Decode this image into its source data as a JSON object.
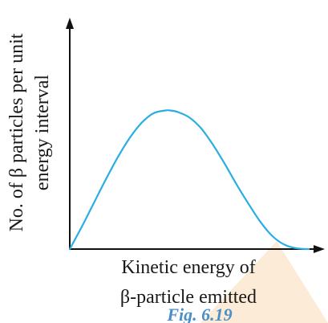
{
  "chart_data": {
    "type": "line",
    "ylabel_lines": [
      "No. of β particles per unit",
      "energy interval"
    ],
    "xlabel_lines": [
      "Kinetic energy of",
      "β-particle emitted"
    ],
    "caption": "Fig. 6.19",
    "grid": false,
    "series": [
      {
        "x": [
          0,
          0.05,
          0.1,
          0.15,
          0.2,
          0.25,
          0.3,
          0.35,
          0.4,
          0.42,
          0.45,
          0.5,
          0.55,
          0.6,
          0.65,
          0.7,
          0.75,
          0.8,
          0.85,
          0.9,
          0.95,
          1.0
        ],
        "y": [
          0,
          0.16,
          0.33,
          0.5,
          0.66,
          0.8,
          0.91,
          0.98,
          1.0,
          1.0,
          0.99,
          0.95,
          0.87,
          0.75,
          0.61,
          0.46,
          0.32,
          0.19,
          0.09,
          0.03,
          0.005,
          0
        ]
      }
    ],
    "xlim": [
      0,
      1.05
    ],
    "ylim": [
      0,
      1.6
    ],
    "colors": {
      "curve": "#29aee3",
      "axes": "#111111",
      "caption": "#4a8fc8",
      "watermark": "#f6a04a"
    }
  }
}
